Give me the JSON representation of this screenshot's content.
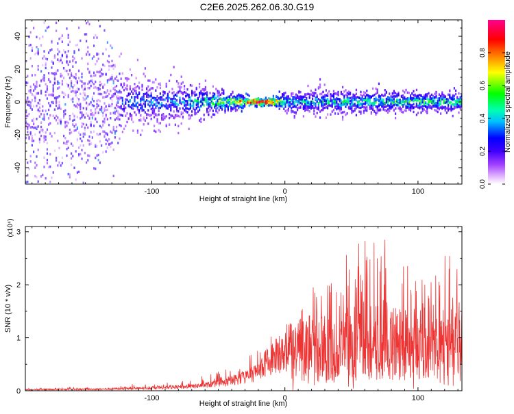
{
  "title": "C2E6.2025.262.06.30.G19",
  "chart_data": [
    {
      "type": "heatmap",
      "xlabel": "Height of straight line (km)",
      "ylabel": "Frequency (Hz)",
      "xlim": [
        -195,
        133
      ],
      "ylim": [
        -50,
        50
      ],
      "x_ticks": [
        -100,
        0,
        100
      ],
      "x_tick_labels": [
        "-100",
        "0",
        "100"
      ],
      "y_ticks": [
        -40,
        -20,
        0,
        20,
        40
      ],
      "y_tick_labels": [
        "-40",
        "-20",
        "0",
        "20",
        "40"
      ],
      "colorbar": {
        "label": "Normalized spectral amplitude",
        "range": [
          0,
          1
        ],
        "ticks": [
          0.0,
          0.2,
          0.4,
          0.6,
          0.8
        ],
        "tick_labels": [
          "0.0",
          "0.2",
          "0.4",
          "0.6",
          "0.8"
        ],
        "colors": [
          "#ffffff",
          "#c080ff",
          "#8000ff",
          "#0000ff",
          "#00e0ff",
          "#00ff00",
          "#ffff00",
          "#ff8000",
          "#ff0000",
          "#ff0080"
        ]
      },
      "ridge": {
        "center_freq_hz": 0,
        "description_points": [
          {
            "x": -195,
            "spread_hz": 50,
            "amp": 0.15
          },
          {
            "x": -140,
            "spread_hz": 40,
            "amp": 0.2
          },
          {
            "x": -120,
            "spread_hz": 14,
            "amp": 0.3
          },
          {
            "x": -80,
            "spread_hz": 10,
            "amp": 0.35
          },
          {
            "x": -40,
            "spread_hz": 5,
            "amp": 0.6
          },
          {
            "x": -25,
            "spread_hz": 2,
            "amp": 0.95
          },
          {
            "x": -10,
            "spread_hz": 2,
            "amp": 0.95
          },
          {
            "x": 0,
            "spread_hz": 6,
            "amp": 0.4
          },
          {
            "x": 50,
            "spread_hz": 6,
            "amp": 0.45
          },
          {
            "x": 100,
            "spread_hz": 5,
            "amp": 0.5
          },
          {
            "x": 133,
            "spread_hz": 5,
            "amp": 0.5
          }
        ]
      }
    },
    {
      "type": "line",
      "xlabel": "Height of straight line (km)",
      "ylabel": "SNR (10 * v/v)",
      "y_multiplier_label": "(x10⁴)",
      "xlim": [
        -195,
        133
      ],
      "ylim": [
        0,
        3.1
      ],
      "x_ticks": [
        -100,
        0,
        100
      ],
      "x_tick_labels": [
        "-100",
        "0",
        "100"
      ],
      "y_ticks": [
        0,
        1,
        2,
        3
      ],
      "y_tick_labels": [
        "0",
        "1",
        "2",
        "3"
      ],
      "color": "#ee3333",
      "series": [
        {
          "name": "SNR",
          "envelope": [
            {
              "x": -195,
              "base": 0.02,
              "amp": 0.05
            },
            {
              "x": -140,
              "base": 0.03,
              "amp": 0.08
            },
            {
              "x": -100,
              "base": 0.05,
              "amp": 0.12
            },
            {
              "x": -70,
              "base": 0.08,
              "amp": 0.2
            },
            {
              "x": -45,
              "base": 0.15,
              "amp": 0.35
            },
            {
              "x": -25,
              "base": 0.3,
              "amp": 0.5
            },
            {
              "x": -10,
              "base": 0.6,
              "amp": 0.6
            },
            {
              "x": 0,
              "base": 0.7,
              "amp": 1.2
            },
            {
              "x": 20,
              "base": 0.8,
              "amp": 2.0
            },
            {
              "x": 50,
              "base": 0.9,
              "amp": 2.8
            },
            {
              "x": 70,
              "base": 0.9,
              "amp": 3.1
            },
            {
              "x": 100,
              "base": 0.9,
              "amp": 2.7
            },
            {
              "x": 133,
              "base": 0.9,
              "amp": 2.6
            }
          ]
        }
      ]
    }
  ]
}
